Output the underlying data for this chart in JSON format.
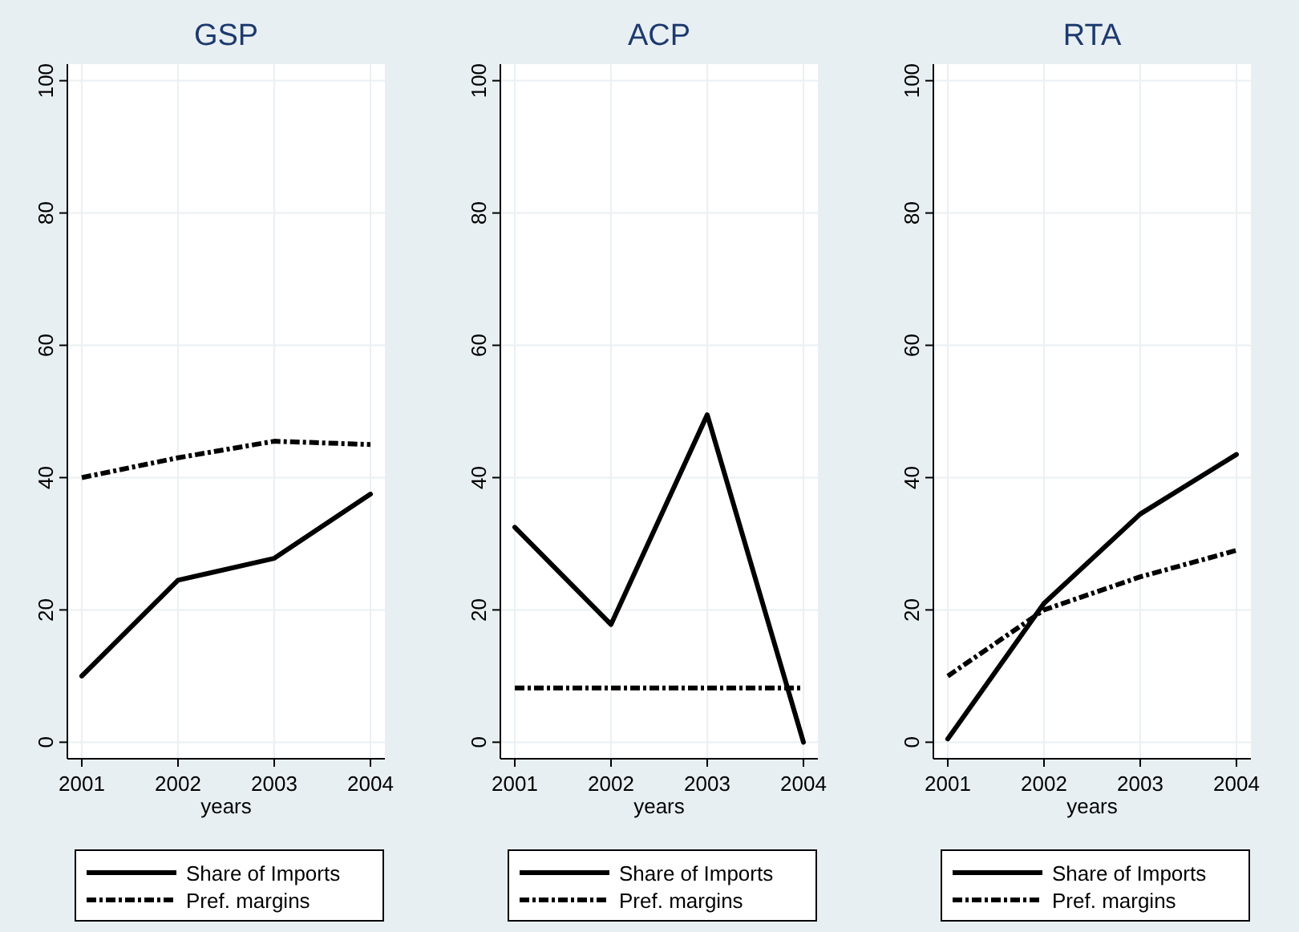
{
  "chart_data": [
    {
      "type": "line",
      "title": "GSP",
      "xlabel": "years",
      "x": [
        2001,
        2002,
        2003,
        2004
      ],
      "xlim": [
        2000.85,
        2004.15
      ],
      "xticks": [
        2001,
        2002,
        2003,
        2004
      ],
      "ylim": [
        -2.5,
        102.5
      ],
      "yticks": [
        0,
        20,
        40,
        60,
        80,
        100
      ],
      "grid": true,
      "legend": "bottom",
      "series": [
        {
          "name": "Share of Imports",
          "color": "#000000",
          "line_style": "solid",
          "values": [
            10,
            24.5,
            27.8,
            37.5
          ]
        },
        {
          "name": "Pref. margins",
          "color": "#000000",
          "line_style": "dashed",
          "values": [
            40,
            43,
            45.5,
            45
          ]
        }
      ]
    },
    {
      "type": "line",
      "title": "ACP",
      "xlabel": "years",
      "x": [
        2001,
        2002,
        2003,
        2004
      ],
      "xlim": [
        2000.85,
        2004.15
      ],
      "xticks": [
        2001,
        2002,
        2003,
        2004
      ],
      "ylim": [
        -2.5,
        102.5
      ],
      "yticks": [
        0,
        20,
        40,
        60,
        80,
        100
      ],
      "grid": true,
      "legend": "bottom",
      "series": [
        {
          "name": "Share of Imports",
          "color": "#000000",
          "line_style": "solid",
          "values": [
            32.5,
            17.8,
            49.5,
            0
          ]
        },
        {
          "name": "Pref. margins",
          "color": "#000000",
          "line_style": "dashed",
          "values": [
            8.2,
            8.2,
            8.2,
            8.2
          ]
        }
      ]
    },
    {
      "type": "line",
      "title": "RTA",
      "xlabel": "years",
      "x": [
        2001,
        2002,
        2003,
        2004
      ],
      "xlim": [
        2000.85,
        2004.15
      ],
      "xticks": [
        2001,
        2002,
        2003,
        2004
      ],
      "ylim": [
        -2.5,
        102.5
      ],
      "yticks": [
        0,
        20,
        40,
        60,
        80,
        100
      ],
      "grid": true,
      "legend": "bottom",
      "series": [
        {
          "name": "Share of Imports",
          "color": "#000000",
          "line_style": "solid",
          "values": [
            0.5,
            21,
            34.5,
            43.5
          ]
        },
        {
          "name": "Pref. margins",
          "color": "#000000",
          "line_style": "dashed",
          "values": [
            10,
            20,
            25,
            29
          ]
        }
      ]
    }
  ]
}
